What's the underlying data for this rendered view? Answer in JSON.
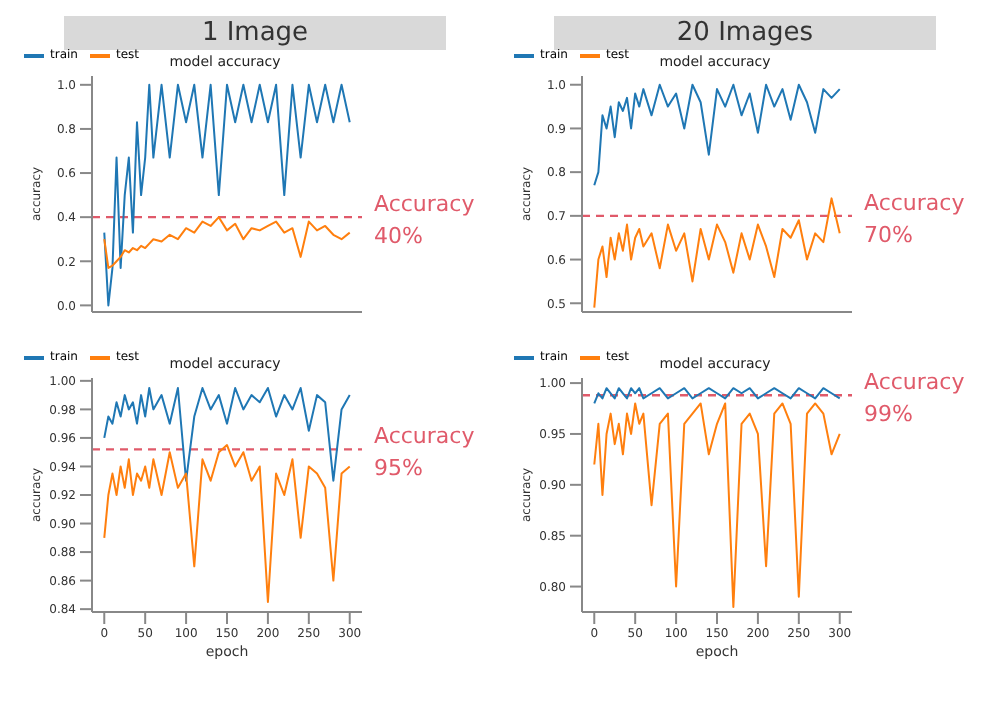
{
  "chart_data": [
    {
      "type": "line",
      "title": "1 Image",
      "subtitle": "model accuracy",
      "ylabel": "accuracy",
      "legend": "top left",
      "tick_labels": "y",
      "xlim": [
        -15,
        315
      ],
      "ylim": [
        -0.03,
        1.04
      ],
      "yticks": [
        {
          "value": 0,
          "label": "0.0"
        },
        {
          "value": 0.2,
          "label": "0.2"
        },
        {
          "value": 0.4,
          "label": "0.4"
        },
        {
          "value": 0.6,
          "label": "0.6"
        },
        {
          "value": 0.8,
          "label": "0.8"
        },
        {
          "value": 1,
          "label": "1.0"
        }
      ],
      "x": [
        0,
        5,
        10,
        15,
        20,
        25,
        30,
        35,
        40,
        45,
        50,
        55,
        60,
        70,
        80,
        90,
        100,
        110,
        120,
        130,
        140,
        150,
        160,
        170,
        180,
        190,
        200,
        210,
        220,
        230,
        240,
        250,
        260,
        270,
        280,
        290,
        300
      ],
      "series": [
        {
          "name": "train",
          "color": "#1f77b4",
          "values": [
            0.33,
            0,
            0.17,
            0.67,
            0.17,
            0.5,
            0.67,
            0.33,
            0.83,
            0.5,
            0.67,
            1.0,
            0.67,
            1.0,
            0.67,
            1.0,
            0.83,
            1.0,
            0.67,
            1.0,
            0.5,
            1.0,
            0.83,
            1.0,
            0.83,
            1.0,
            0.83,
            1.0,
            0.5,
            1.0,
            0.67,
            1.0,
            0.83,
            1.0,
            0.83,
            1.0,
            0.83
          ]
        },
        {
          "name": "test",
          "color": "#ff7f0e",
          "values": [
            0.3,
            0.17,
            0.18,
            0.2,
            0.22,
            0.25,
            0.24,
            0.26,
            0.25,
            0.27,
            0.26,
            0.28,
            0.3,
            0.29,
            0.32,
            0.3,
            0.35,
            0.33,
            0.38,
            0.36,
            0.4,
            0.34,
            0.37,
            0.3,
            0.35,
            0.34,
            0.36,
            0.38,
            0.33,
            0.35,
            0.22,
            0.38,
            0.34,
            0.36,
            0.32,
            0.3,
            0.33
          ]
        }
      ],
      "ref_lines": [
        {
          "axis": "y",
          "value": 0.4,
          "label": "Accuracy",
          "color": "#e05a6a",
          "line_style": "dashed"
        }
      ],
      "annotations": [
        "40%"
      ]
    },
    {
      "type": "line",
      "title": "20 Images",
      "subtitle": "model accuracy",
      "ylabel": "accuracy",
      "legend": "top left",
      "tick_labels": "y",
      "xlim": [
        -15,
        315
      ],
      "ylim": [
        0.48,
        1.02
      ],
      "yticks": [
        {
          "value": 0.5,
          "label": "0.5"
        },
        {
          "value": 0.6,
          "label": "0.6"
        },
        {
          "value": 0.7,
          "label": "0.7"
        },
        {
          "value": 0.8,
          "label": "0.8"
        },
        {
          "value": 0.9,
          "label": "0.9"
        },
        {
          "value": 1,
          "label": "1.0"
        }
      ],
      "x": [
        0,
        5,
        10,
        15,
        20,
        25,
        30,
        35,
        40,
        45,
        50,
        55,
        60,
        70,
        80,
        90,
        100,
        110,
        120,
        130,
        140,
        150,
        160,
        170,
        180,
        190,
        200,
        210,
        220,
        230,
        240,
        250,
        260,
        270,
        280,
        290,
        300
      ],
      "series": [
        {
          "name": "train",
          "color": "#1f77b4",
          "values": [
            0.77,
            0.8,
            0.93,
            0.9,
            0.95,
            0.88,
            0.96,
            0.94,
            0.97,
            0.9,
            0.98,
            0.95,
            0.99,
            0.93,
            1.0,
            0.95,
            0.98,
            0.9,
            1.0,
            0.96,
            0.84,
            0.99,
            0.95,
            1.0,
            0.93,
            0.98,
            0.89,
            1.0,
            0.95,
            0.99,
            0.92,
            1.0,
            0.96,
            0.89,
            0.99,
            0.97,
            0.99
          ]
        },
        {
          "name": "test",
          "color": "#ff7f0e",
          "values": [
            0.49,
            0.6,
            0.63,
            0.56,
            0.65,
            0.6,
            0.66,
            0.62,
            0.68,
            0.6,
            0.65,
            0.67,
            0.63,
            0.66,
            0.58,
            0.68,
            0.62,
            0.66,
            0.55,
            0.67,
            0.6,
            0.68,
            0.64,
            0.57,
            0.66,
            0.6,
            0.68,
            0.63,
            0.56,
            0.67,
            0.65,
            0.69,
            0.6,
            0.66,
            0.64,
            0.74,
            0.66
          ]
        }
      ],
      "ref_lines": [
        {
          "axis": "y",
          "value": 0.7,
          "label": "Accuracy",
          "color": "#e05a6a",
          "line_style": "dashed"
        }
      ],
      "annotations": [
        "70%"
      ]
    },
    {
      "type": "line",
      "subtitle": "model accuracy",
      "xlabel": "epoch",
      "ylabel": "accuracy",
      "legend": "top left",
      "xlim": [
        -15,
        315
      ],
      "ylim": [
        0.838,
        1.002
      ],
      "xticks": [
        0,
        50,
        100,
        150,
        200,
        250,
        300
      ],
      "yticks": [
        {
          "value": 0.84,
          "label": "0.84"
        },
        {
          "value": 0.86,
          "label": "0.86"
        },
        {
          "value": 0.88,
          "label": "0.88"
        },
        {
          "value": 0.9,
          "label": "0.90"
        },
        {
          "value": 0.92,
          "label": "0.92"
        },
        {
          "value": 0.94,
          "label": "0.94"
        },
        {
          "value": 0.96,
          "label": "0.96"
        },
        {
          "value": 0.98,
          "label": "0.98"
        },
        {
          "value": 1,
          "label": "1.00"
        }
      ],
      "x": [
        0,
        5,
        10,
        15,
        20,
        25,
        30,
        35,
        40,
        45,
        50,
        55,
        60,
        70,
        80,
        90,
        100,
        110,
        120,
        130,
        140,
        150,
        160,
        170,
        180,
        190,
        200,
        210,
        220,
        230,
        240,
        250,
        260,
        270,
        280,
        290,
        300
      ],
      "series": [
        {
          "name": "train",
          "color": "#1f77b4",
          "values": [
            0.96,
            0.975,
            0.97,
            0.985,
            0.975,
            0.99,
            0.98,
            0.985,
            0.97,
            0.99,
            0.975,
            0.995,
            0.98,
            0.99,
            0.97,
            0.995,
            0.93,
            0.975,
            0.995,
            0.98,
            0.99,
            0.97,
            0.995,
            0.98,
            0.99,
            0.985,
            0.995,
            0.975,
            0.99,
            0.98,
            0.995,
            0.965,
            0.99,
            0.985,
            0.93,
            0.98,
            0.99
          ]
        },
        {
          "name": "test",
          "color": "#ff7f0e",
          "values": [
            0.89,
            0.92,
            0.935,
            0.92,
            0.94,
            0.925,
            0.945,
            0.92,
            0.935,
            0.93,
            0.94,
            0.925,
            0.945,
            0.92,
            0.95,
            0.925,
            0.935,
            0.87,
            0.945,
            0.93,
            0.95,
            0.955,
            0.94,
            0.95,
            0.93,
            0.94,
            0.845,
            0.935,
            0.92,
            0.945,
            0.89,
            0.94,
            0.935,
            0.925,
            0.86,
            0.935,
            0.94
          ]
        }
      ],
      "ref_lines": [
        {
          "axis": "y",
          "value": 0.952,
          "label": "Accuracy",
          "color": "#e05a6a",
          "line_style": "dashed"
        }
      ],
      "annotations": [
        "95%"
      ]
    },
    {
      "type": "line",
      "subtitle": "model accuracy",
      "xlabel": "epoch",
      "ylabel": "accuracy",
      "legend": "top left",
      "xlim": [
        -15,
        315
      ],
      "ylim": [
        0.775,
        1.005
      ],
      "xticks": [
        0,
        50,
        100,
        150,
        200,
        250,
        300
      ],
      "yticks": [
        {
          "value": 0.8,
          "label": "0.80"
        },
        {
          "value": 0.85,
          "label": "0.85"
        },
        {
          "value": 0.9,
          "label": "0.90"
        },
        {
          "value": 0.95,
          "label": "0.95"
        },
        {
          "value": 1,
          "label": "1.00"
        }
      ],
      "x": [
        0,
        5,
        10,
        15,
        20,
        25,
        30,
        35,
        40,
        45,
        50,
        55,
        60,
        70,
        80,
        90,
        100,
        110,
        120,
        130,
        140,
        150,
        160,
        170,
        180,
        190,
        200,
        210,
        220,
        230,
        240,
        250,
        260,
        270,
        280,
        290,
        300
      ],
      "series": [
        {
          "name": "train",
          "color": "#1f77b4",
          "values": [
            0.98,
            0.99,
            0.985,
            0.995,
            0.99,
            0.985,
            0.995,
            0.99,
            0.985,
            0.995,
            0.99,
            0.995,
            0.985,
            0.99,
            0.995,
            0.985,
            0.99,
            0.995,
            0.985,
            0.99,
            0.995,
            0.99,
            0.985,
            0.995,
            0.99,
            0.995,
            0.985,
            0.99,
            0.995,
            0.99,
            0.985,
            0.995,
            0.99,
            0.985,
            0.995,
            0.99,
            0.985
          ]
        },
        {
          "name": "test",
          "color": "#ff7f0e",
          "values": [
            0.92,
            0.96,
            0.89,
            0.95,
            0.97,
            0.94,
            0.96,
            0.93,
            0.97,
            0.95,
            0.98,
            0.96,
            0.97,
            0.88,
            0.96,
            0.97,
            0.8,
            0.96,
            0.97,
            0.98,
            0.93,
            0.96,
            0.98,
            0.78,
            0.96,
            0.97,
            0.95,
            0.82,
            0.97,
            0.98,
            0.96,
            0.79,
            0.97,
            0.98,
            0.97,
            0.93,
            0.95
          ]
        }
      ],
      "ref_lines": [
        {
          "axis": "y",
          "value": 0.988,
          "label": "Accuracy",
          "color": "#e05a6a",
          "line_style": "dashed"
        }
      ],
      "annotations": [
        "99%"
      ]
    }
  ]
}
